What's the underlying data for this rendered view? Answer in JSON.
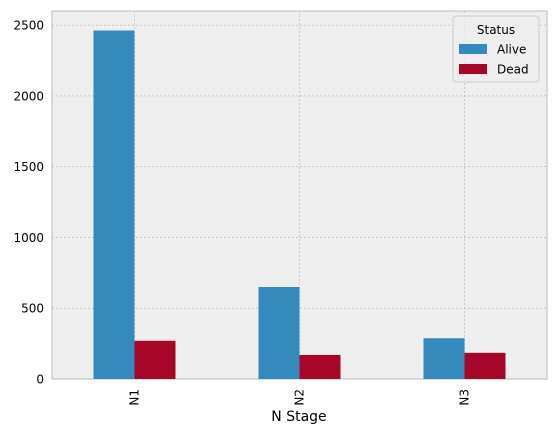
{
  "chart_data": {
    "type": "bar",
    "title": "",
    "xlabel": "N Stage",
    "ylabel": "",
    "categories": [
      "N1",
      "N2",
      "N3"
    ],
    "series": [
      {
        "name": "Alive",
        "color": "#348ABD",
        "values": [
          2462,
          650,
          288
        ]
      },
      {
        "name": "Dead",
        "color": "#A60628",
        "values": [
          270,
          170,
          185
        ]
      }
    ],
    "ylim": [
      0,
      2600
    ],
    "yticks": [
      0,
      500,
      1000,
      1500,
      2000,
      2500
    ],
    "grid": true,
    "legend": {
      "title": "Status",
      "placement": "top-right"
    },
    "colors": {
      "plot_background": "#EEEEEE",
      "grid": "#B2B2B2",
      "axes_edge": "#BCBCBC"
    }
  }
}
